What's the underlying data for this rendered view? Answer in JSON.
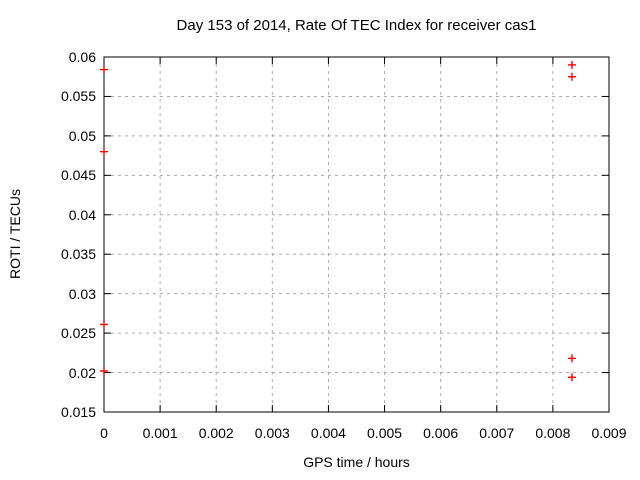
{
  "chart_data": {
    "type": "scatter",
    "title": "Day 153 of 2014, Rate Of TEC Index for receiver cas1",
    "xlabel": "GPS time / hours",
    "ylabel": "ROTI / TECUs",
    "xlim": [
      0,
      0.009
    ],
    "ylim": [
      0.015,
      0.06
    ],
    "xticks": [
      {
        "value": 0,
        "label": "0"
      },
      {
        "value": 0.001,
        "label": "0.001"
      },
      {
        "value": 0.002,
        "label": "0.002"
      },
      {
        "value": 0.003,
        "label": "0.003"
      },
      {
        "value": 0.004,
        "label": "0.004"
      },
      {
        "value": 0.005,
        "label": "0.005"
      },
      {
        "value": 0.006,
        "label": "0.006"
      },
      {
        "value": 0.007,
        "label": "0.007"
      },
      {
        "value": 0.008,
        "label": "0.008"
      },
      {
        "value": 0.009,
        "label": "0.009"
      }
    ],
    "yticks": [
      {
        "value": 0.015,
        "label": "0.015"
      },
      {
        "value": 0.02,
        "label": "0.02"
      },
      {
        "value": 0.025,
        "label": "0.025"
      },
      {
        "value": 0.03,
        "label": "0.03"
      },
      {
        "value": 0.035,
        "label": "0.035"
      },
      {
        "value": 0.04,
        "label": "0.04"
      },
      {
        "value": 0.045,
        "label": "0.045"
      },
      {
        "value": 0.05,
        "label": "0.05"
      },
      {
        "value": 0.055,
        "label": "0.055"
      },
      {
        "value": 0.06,
        "label": "0.06"
      }
    ],
    "grid": true,
    "legend": "none",
    "marker": "plus",
    "colors": {
      "marker": "#ff0000",
      "grid": "#aaaaaa",
      "axis": "#000000",
      "text": "#000000",
      "background": "#ffffff"
    },
    "series": [
      {
        "points": [
          [
            0,
            0.0584
          ],
          [
            0,
            0.048
          ],
          [
            0,
            0.0261
          ],
          [
            0,
            0.0202
          ],
          [
            0.00834,
            0.059
          ],
          [
            0.00834,
            0.0575
          ],
          [
            0.00834,
            0.0218
          ],
          [
            0.00834,
            0.0194
          ]
        ]
      }
    ]
  }
}
